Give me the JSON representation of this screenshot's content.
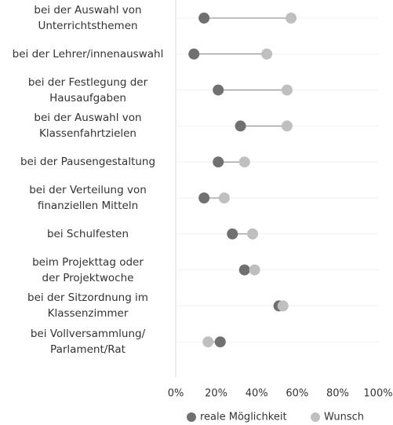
{
  "chart_data": {
    "type": "dumbbell",
    "categories": [
      [
        "bei der Auswahl von",
        "Unterrichtsthemen"
      ],
      [
        "bei der Lehrer/innenauswahl"
      ],
      [
        "bei der Festlegung der",
        "Hausaufgaben"
      ],
      [
        "bei der Auswahl von",
        "Klassenfahrtzielen"
      ],
      [
        "bei der Pausengestaltung"
      ],
      [
        "bei der Verteilung von",
        "finanziellen Mitteln"
      ],
      [
        "bei Schulfesten"
      ],
      [
        "beim Projekttag oder",
        "der Projektwoche"
      ],
      [
        "bei der Sitzordnung im",
        "Klassenzimmer"
      ],
      [
        "bei Vollversammlung/",
        "Parlament/Rat"
      ]
    ],
    "series": [
      {
        "name": "reale Möglichkeit",
        "color": "#707070",
        "values": [
          14,
          9,
          21,
          32,
          21,
          14,
          28,
          34,
          51,
          22
        ]
      },
      {
        "name": "Wunsch",
        "color": "#bfbfbf",
        "values": [
          57,
          45,
          55,
          55,
          34,
          24,
          38,
          39,
          53,
          16
        ]
      }
    ],
    "xlim": [
      0,
      100
    ],
    "xticks": [
      {
        "value": 0,
        "label": "0%"
      },
      {
        "value": 20,
        "label": "20%"
      },
      {
        "value": 40,
        "label": "40%"
      },
      {
        "value": 60,
        "label": "60%"
      },
      {
        "value": 80,
        "label": "80%"
      },
      {
        "value": 100,
        "label": "100%"
      }
    ],
    "legend": "bottom"
  }
}
